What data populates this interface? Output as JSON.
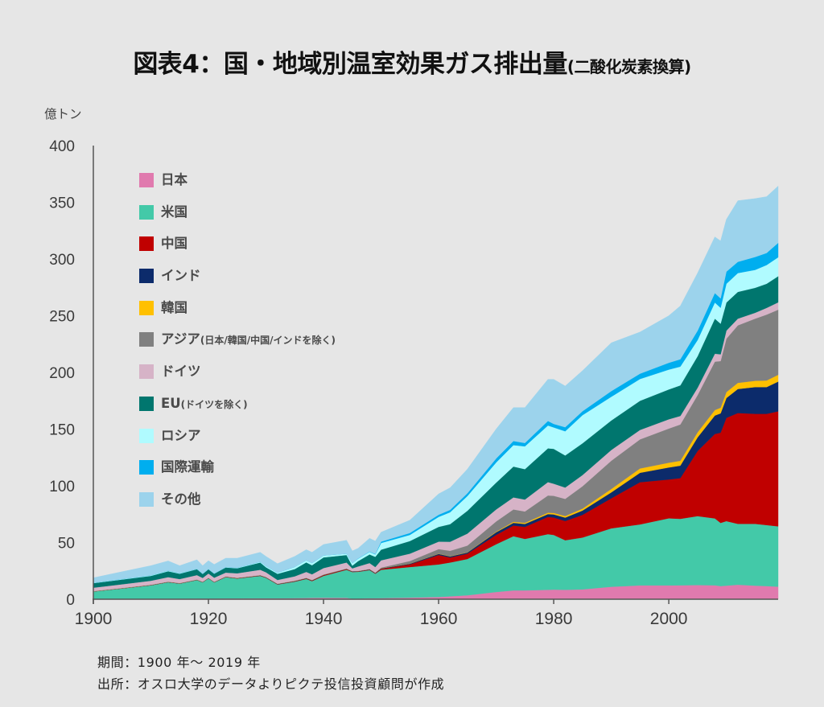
{
  "title": {
    "main": "図表4：国・地域別温室効果ガス排出量",
    "sub": "(二酸化炭素換算)"
  },
  "footer": {
    "period": "期間：1900 年〜 2019 年",
    "source": "出所：オスロ大学のデータよりピクテ投信投資顧問が作成"
  },
  "chart_data": {
    "type": "area",
    "stacked": true,
    "title": "図表4：国・地域別温室効果ガス排出量(二酸化炭素換算)",
    "xlabel": "",
    "ylabel": "億トン",
    "xlim": [
      1900,
      2019
    ],
    "ylim": [
      0,
      400
    ],
    "grid": false,
    "legend_position": "top-left (inside plot)",
    "xticks": [
      1900,
      1920,
      1940,
      1960,
      1980,
      2000
    ],
    "xtick_labels": [
      "1900",
      "1920",
      "1940",
      "1960",
      "1980",
      "2000"
    ],
    "yticks": [
      0,
      50,
      100,
      150,
      200,
      250,
      300,
      350,
      400
    ],
    "ytick_labels": [
      "0",
      "50",
      "100",
      "150",
      "200",
      "250",
      "300",
      "350",
      "400"
    ],
    "x": [
      1900,
      1905,
      1910,
      1913,
      1915,
      1918,
      1919,
      1920,
      1921,
      1923,
      1925,
      1929,
      1930,
      1932,
      1935,
      1937,
      1938,
      1940,
      1944,
      1945,
      1946,
      1948,
      1949,
      1950,
      1955,
      1960,
      1962,
      1965,
      1970,
      1973,
      1975,
      1979,
      1980,
      1982,
      1985,
      1990,
      1995,
      2000,
      2002,
      2005,
      2008,
      2009,
      2010,
      2012,
      2015,
      2017,
      2019
    ],
    "series": [
      {
        "name": "日本",
        "note": "",
        "color": "#e07aae",
        "values": [
          0.2,
          0.3,
          0.4,
          0.5,
          0.5,
          0.6,
          0.6,
          0.6,
          0.6,
          0.7,
          0.7,
          0.8,
          0.8,
          0.8,
          1.0,
          1.1,
          1.2,
          1.3,
          1.2,
          0.5,
          0.6,
          0.9,
          0.9,
          1.0,
          1.4,
          2.0,
          2.6,
          3.5,
          6.4,
          7.8,
          7.8,
          8.3,
          8.5,
          8.3,
          8.7,
          11.0,
          12.2,
          12.2,
          12.3,
          12.5,
          12.3,
          11.6,
          12.0,
          12.8,
          12.0,
          11.6,
          11.1
        ]
      },
      {
        "name": "米国",
        "note": "",
        "color": "#43c9a8",
        "values": [
          6.6,
          9.2,
          11.9,
          14.5,
          13.3,
          16.3,
          14.3,
          17.8,
          14.3,
          18.8,
          17.6,
          19.8,
          18.1,
          12.2,
          14.5,
          16.8,
          14.8,
          19.3,
          24.8,
          23.5,
          23.6,
          24.8,
          21.6,
          25.0,
          27.0,
          28.7,
          29.8,
          32.0,
          42.1,
          47.8,
          45.4,
          49.1,
          48.2,
          43.7,
          45.7,
          51.5,
          53.8,
          59.2,
          58.6,
          60.8,
          59.0,
          55.7,
          56.9,
          53.7,
          54.5,
          53.8,
          53.2
        ]
      },
      {
        "name": "中国",
        "note": "",
        "color": "#c00000",
        "values": [
          0.1,
          0.1,
          0.1,
          0.1,
          0.1,
          0.1,
          0.1,
          0.1,
          0.1,
          0.2,
          0.2,
          0.2,
          0.2,
          0.2,
          0.3,
          0.4,
          0.4,
          0.6,
          0.5,
          0.3,
          0.3,
          0.3,
          0.3,
          0.8,
          2.3,
          8.3,
          4.4,
          4.7,
          8.2,
          9.4,
          10.6,
          15.2,
          15.4,
          17.0,
          20.0,
          26.5,
          37.2,
          34.2,
          35.9,
          57.4,
          74.4,
          79.6,
          91.0,
          97.7,
          97.0,
          98.1,
          101.4
        ]
      },
      {
        "name": "インド",
        "note": "",
        "color": "#0c2b6b",
        "values": [
          0.1,
          0.1,
          0.2,
          0.2,
          0.2,
          0.2,
          0.2,
          0.2,
          0.2,
          0.2,
          0.2,
          0.3,
          0.3,
          0.3,
          0.3,
          0.3,
          0.3,
          0.3,
          0.3,
          0.3,
          0.3,
          0.4,
          0.4,
          0.4,
          0.6,
          1.0,
          1.0,
          1.0,
          2.4,
          2.4,
          2.6,
          2.5,
          2.7,
          3.0,
          3.8,
          5.2,
          8.3,
          10.6,
          11.0,
          12.0,
          16.3,
          17.0,
          17.5,
          21.2,
          23.6,
          23.6,
          26.2
        ]
      },
      {
        "name": "韓国",
        "note": "",
        "color": "#ffc000",
        "values": [
          0,
          0,
          0,
          0,
          0,
          0,
          0,
          0,
          0,
          0,
          0,
          0,
          0,
          0,
          0,
          0,
          0,
          0,
          0,
          0,
          0,
          0,
          0,
          0.1,
          0.1,
          0.2,
          0.2,
          0.2,
          0.5,
          0.9,
          1.0,
          1.2,
          1.3,
          1.4,
          1.7,
          3.0,
          3.8,
          4.2,
          4.3,
          4.5,
          4.8,
          5.0,
          5.2,
          5.4,
          5.5,
          5.8,
          6.0
        ]
      },
      {
        "name": "アジア",
        "note": "(日本/韓国/中国/インドを除く)",
        "color": "#808080",
        "values": [
          0.2,
          0.2,
          0.2,
          0.2,
          0.2,
          0.2,
          0.2,
          0.2,
          0.2,
          0.2,
          0.2,
          0.2,
          0.2,
          0.2,
          0.3,
          0.3,
          0.3,
          0.3,
          0.3,
          0.2,
          0.2,
          0.3,
          0.3,
          0.6,
          2.3,
          4.0,
          4.7,
          5.9,
          9.0,
          10.9,
          10.0,
          15.2,
          15.1,
          15.1,
          19.7,
          24.9,
          25.7,
          30.1,
          32.0,
          32.8,
          42.7,
          41.1,
          47.1,
          50.7,
          54.8,
          58.1,
          57.4
        ]
      },
      {
        "name": "ドイツ",
        "note": "",
        "color": "#d6b3c7",
        "values": [
          3.0,
          3.3,
          3.5,
          4.0,
          3.5,
          3.9,
          3.4,
          3.8,
          3.6,
          3.4,
          4.0,
          4.7,
          4.2,
          3.3,
          3.8,
          5.2,
          5.0,
          5.7,
          5.3,
          2.4,
          3.9,
          5.2,
          4.9,
          6.4,
          6.5,
          6.6,
          8.0,
          10.6,
          10.6,
          10.6,
          10.5,
          11.8,
          10.7,
          10.0,
          9.9,
          9.5,
          8.3,
          8.2,
          7.5,
          6.5,
          7.0,
          6.0,
          7.1,
          5.9,
          5.2,
          5.9,
          6.5
        ]
      },
      {
        "name": "EU",
        "note": "(ドイツを除く)",
        "color": "#00766e",
        "values": [
          4.0,
          4.2,
          4.3,
          5.2,
          4.7,
          5.2,
          3.5,
          3.7,
          3.5,
          4.5,
          4.4,
          6.4,
          4.4,
          5.4,
          6.4,
          8.4,
          8.0,
          9.4,
          6.6,
          2.4,
          4.7,
          7.6,
          9.0,
          9.4,
          11.1,
          13.0,
          15.5,
          20.1,
          23.6,
          27.2,
          26.8,
          29.8,
          30.7,
          28.3,
          28.0,
          26.0,
          25.7,
          26.3,
          27.0,
          27.8,
          30.9,
          27.0,
          24.8,
          23.6,
          22.0,
          21.3,
          23.0
        ]
      },
      {
        "name": "ロシア",
        "note": "",
        "color": "#b0fbff",
        "values": [
          0.3,
          0.4,
          0.5,
          0.6,
          0.5,
          0.3,
          0.2,
          0.2,
          0.2,
          0.3,
          0.4,
          0.7,
          1.0,
          1.0,
          1.9,
          1.9,
          1.9,
          1.7,
          1.2,
          2.3,
          2.1,
          2.3,
          2.1,
          5.9,
          5.4,
          8.8,
          10.5,
          13.0,
          17.8,
          18.9,
          20.1,
          20.1,
          18.9,
          21.3,
          24.8,
          20.9,
          19.2,
          17.5,
          16.5,
          14.2,
          14.2,
          14.0,
          16.5,
          16.6,
          15.8,
          16.5,
          16.7
        ]
      },
      {
        "name": "国際運輸",
        "note": "",
        "color": "#00aeef",
        "values": [
          0,
          0,
          0,
          0,
          0,
          0,
          0,
          0,
          0,
          0,
          0,
          0,
          0,
          0,
          0,
          0,
          0,
          0,
          0,
          0,
          0.2,
          0.3,
          0.4,
          1.2,
          1.7,
          1.9,
          2.1,
          2.4,
          3.5,
          3.6,
          3.0,
          4.0,
          3.1,
          3.6,
          3.5,
          5.0,
          4.7,
          6.0,
          6.5,
          8.3,
          8.4,
          8.3,
          10.7,
          9.9,
          11.4,
          10.6,
          12.7
        ]
      },
      {
        "name": "その他",
        "note": "",
        "color": "#9cd3ec",
        "values": [
          4.4,
          6.5,
          8.5,
          8.5,
          6.6,
          8.0,
          7.1,
          7.4,
          8.0,
          7.9,
          8.5,
          8.3,
          8.6,
          8.0,
          9.3,
          9.3,
          9.5,
          9.7,
          11.8,
          10.7,
          9.0,
          11.6,
          11.4,
          8.3,
          11.3,
          18.4,
          19.5,
          21.3,
          26.0,
          29.5,
          31.2,
          36.7,
          39.3,
          36.3,
          35.7,
          42.6,
          36.7,
          41.5,
          47.0,
          50.8,
          49.5,
          50.7,
          46.1,
          53.9,
          51.5,
          49.7,
          50.1
        ]
      }
    ]
  }
}
